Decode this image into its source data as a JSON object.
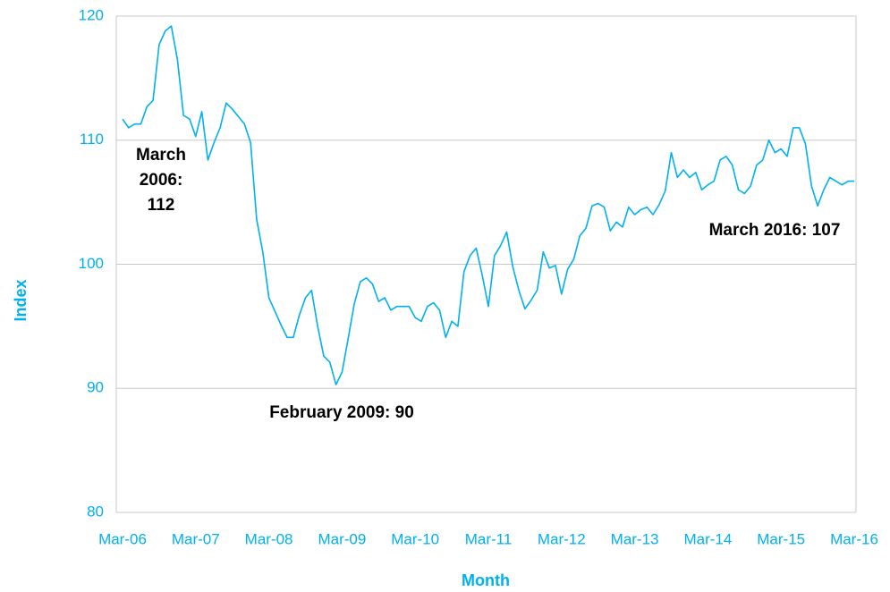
{
  "chart_data": {
    "type": "line",
    "x_label": "Month",
    "y_label": "Index",
    "color": "#00b0f0",
    "grid": true,
    "ylim": [
      80,
      120
    ],
    "yticks": [
      80,
      90,
      100,
      110,
      120
    ],
    "categories": [
      "Mar-06",
      null,
      null,
      null,
      null,
      null,
      null,
      null,
      null,
      null,
      null,
      null,
      "Mar-07",
      null,
      null,
      null,
      null,
      null,
      null,
      null,
      null,
      null,
      null,
      null,
      "Mar-08",
      null,
      null,
      null,
      null,
      null,
      null,
      null,
      null,
      null,
      null,
      null,
      "Mar-09",
      null,
      null,
      null,
      null,
      null,
      null,
      null,
      null,
      null,
      null,
      null,
      "Mar-10",
      null,
      null,
      null,
      null,
      null,
      null,
      null,
      null,
      null,
      null,
      null,
      "Mar-11",
      null,
      null,
      null,
      null,
      null,
      null,
      null,
      null,
      null,
      null,
      null,
      "Mar-12",
      null,
      null,
      null,
      null,
      null,
      null,
      null,
      null,
      null,
      null,
      null,
      "Mar-13",
      null,
      null,
      null,
      null,
      null,
      null,
      null,
      null,
      null,
      null,
      null,
      "Mar-14",
      null,
      null,
      null,
      null,
      null,
      null,
      null,
      null,
      null,
      null,
      null,
      "Mar-15",
      null,
      null,
      null,
      null,
      null,
      null,
      null,
      null,
      null,
      null,
      null,
      "Mar-16"
    ],
    "values": [
      111.7,
      111.0,
      111.3,
      111.3,
      112.7,
      113.2,
      117.7,
      118.8,
      119.2,
      116.5,
      112.0,
      111.7,
      110.3,
      112.3,
      108.4,
      109.8,
      111.0,
      113.0,
      112.5,
      111.9,
      111.3,
      109.8,
      103.6,
      101.0,
      97.3,
      96.2,
      95.1,
      94.1,
      94.1,
      95.9,
      97.3,
      97.9,
      95.0,
      92.6,
      92.1,
      90.3,
      91.3,
      94.0,
      96.8,
      98.6,
      98.9,
      98.4,
      97.0,
      97.3,
      96.3,
      96.6,
      96.6,
      96.6,
      95.7,
      95.4,
      96.6,
      96.9,
      96.3,
      94.1,
      95.4,
      95.0,
      99.4,
      100.7,
      101.3,
      99.1,
      96.6,
      100.7,
      101.5,
      102.6,
      99.8,
      97.9,
      96.4,
      97.1,
      97.9,
      101.0,
      99.7,
      99.9,
      97.6,
      99.6,
      100.4,
      102.3,
      102.9,
      104.7,
      104.9,
      104.6,
      102.7,
      103.4,
      103.0,
      104.6,
      104.0,
      104.4,
      104.6,
      104.0,
      104.8,
      105.9,
      109.0,
      107.0,
      107.6,
      107.0,
      107.4,
      106.0,
      106.4,
      106.7,
      108.4,
      108.7,
      108.0,
      106.0,
      105.7,
      106.3,
      108.0,
      108.4,
      110.0,
      109.0,
      109.3,
      108.7,
      111.0,
      111.0,
      109.7,
      106.3,
      104.7,
      106.0,
      107.0,
      106.7,
      106.4,
      106.7,
      106.7
    ],
    "annotations": [
      {
        "lines": [
          "March",
          "2006:",
          "112"
        ]
      },
      {
        "lines": [
          "February 2009: 90"
        ]
      },
      {
        "lines": [
          "March 2016: 107"
        ]
      }
    ]
  }
}
